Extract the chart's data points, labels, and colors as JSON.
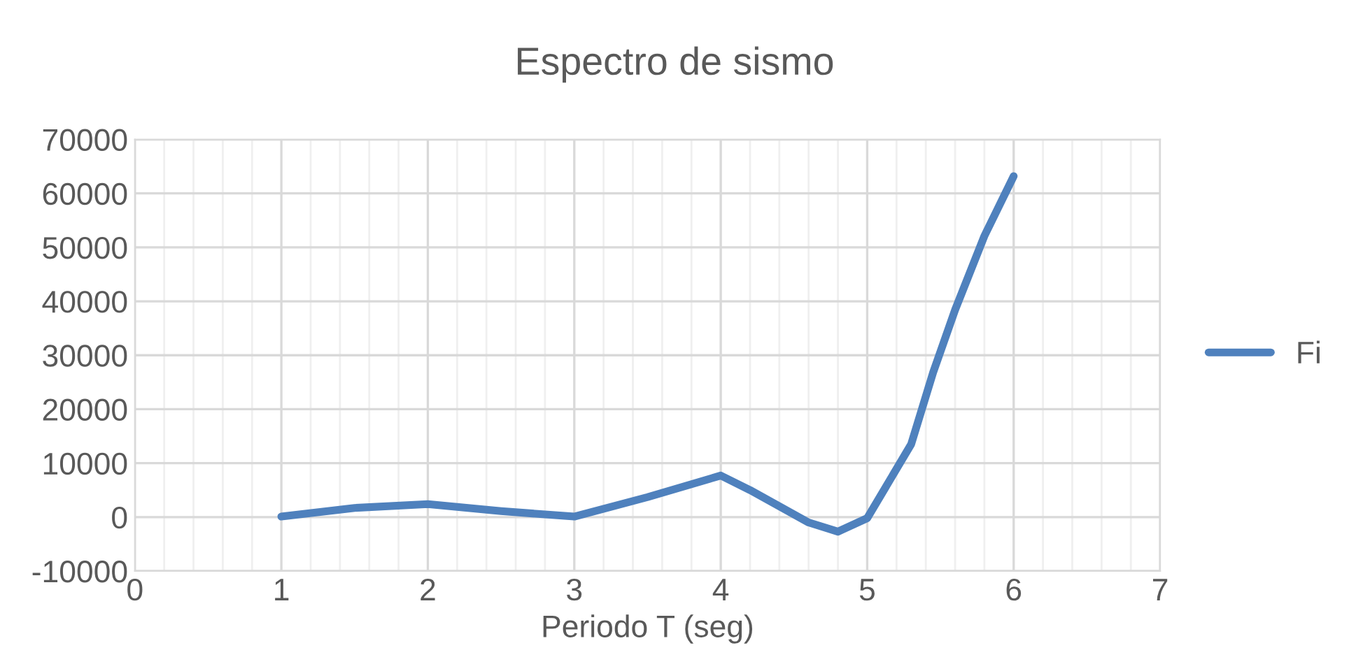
{
  "chart_data": {
    "type": "line",
    "title": "Espectro de sismo",
    "xlabel": "Periodo T (seg)",
    "x": [
      1,
      1.5,
      2,
      2.5,
      3,
      3.5,
      4,
      4.2,
      4.4,
      4.6,
      4.8,
      5,
      5.3,
      5.45,
      5.6,
      5.8,
      6
    ],
    "series": [
      {
        "name": "Fi",
        "color": "#4f81bd",
        "values": [
          100,
          1700,
          2400,
          1100,
          100,
          3700,
          7700,
          5000,
          2000,
          -1000,
          -2700,
          -200,
          13500,
          26800,
          38400,
          52100,
          63200
        ]
      }
    ],
    "xlim": [
      0,
      7
    ],
    "xticks": [
      0,
      1,
      2,
      3,
      4,
      5,
      6,
      7
    ],
    "ylim": [
      -10000,
      70000
    ],
    "yticks": [
      -10000,
      0,
      10000,
      20000,
      30000,
      40000,
      50000,
      60000,
      70000
    ],
    "grid": true,
    "legend": "right",
    "marker": "none",
    "line_style": "solid"
  }
}
